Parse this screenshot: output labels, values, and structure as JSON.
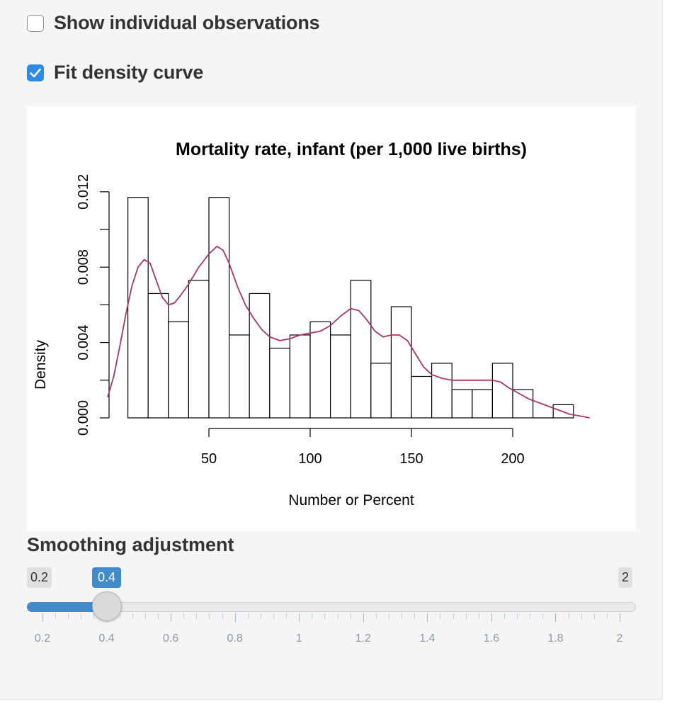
{
  "checkboxes": [
    {
      "label": "Show individual observations",
      "checked": false
    },
    {
      "label": "Fit density curve",
      "checked": true
    }
  ],
  "chart_data": {
    "type": "bar",
    "title": "Mortality rate, infant (per 1,000 live births)",
    "xlabel": "Number or Percent",
    "ylabel": "Density",
    "x_ticks": [
      50,
      100,
      150,
      200
    ],
    "y_ticks": [
      0.0,
      0.004,
      0.008,
      0.012
    ],
    "y_tick_labels": [
      "0.000",
      "0.004",
      "0.008",
      "0.012"
    ],
    "ylim": [
      0,
      0.012
    ],
    "bins": [
      {
        "x0": 10,
        "x1": 20,
        "density": 0.0117
      },
      {
        "x0": 20,
        "x1": 30,
        "density": 0.0066
      },
      {
        "x0": 30,
        "x1": 40,
        "density": 0.0051
      },
      {
        "x0": 40,
        "x1": 50,
        "density": 0.0073
      },
      {
        "x0": 50,
        "x1": 60,
        "density": 0.0117
      },
      {
        "x0": 60,
        "x1": 70,
        "density": 0.0044
      },
      {
        "x0": 70,
        "x1": 80,
        "density": 0.0066
      },
      {
        "x0": 80,
        "x1": 90,
        "density": 0.0037
      },
      {
        "x0": 90,
        "x1": 100,
        "density": 0.0044
      },
      {
        "x0": 100,
        "x1": 110,
        "density": 0.0051
      },
      {
        "x0": 110,
        "x1": 120,
        "density": 0.0044
      },
      {
        "x0": 120,
        "x1": 130,
        "density": 0.0073
      },
      {
        "x0": 130,
        "x1": 140,
        "density": 0.0029
      },
      {
        "x0": 140,
        "x1": 150,
        "density": 0.0059
      },
      {
        "x0": 150,
        "x1": 160,
        "density": 0.0022
      },
      {
        "x0": 160,
        "x1": 170,
        "density": 0.0029
      },
      {
        "x0": 170,
        "x1": 180,
        "density": 0.0015
      },
      {
        "x0": 180,
        "x1": 190,
        "density": 0.0015
      },
      {
        "x0": 190,
        "x1": 200,
        "density": 0.0029
      },
      {
        "x0": 200,
        "x1": 210,
        "density": 0.0015
      },
      {
        "x0": 210,
        "x1": 220,
        "density": 0
      },
      {
        "x0": 220,
        "x1": 230,
        "density": 0.0007
      }
    ],
    "density_curve": {
      "color": "#a8385e",
      "points": [
        [
          0,
          0.0011
        ],
        [
          3,
          0.0022
        ],
        [
          6,
          0.0038
        ],
        [
          9,
          0.0055
        ],
        [
          12,
          0.007
        ],
        [
          15,
          0.008
        ],
        [
          18,
          0.0084
        ],
        [
          21,
          0.0082
        ],
        [
          24,
          0.0073
        ],
        [
          27,
          0.0064
        ],
        [
          30,
          0.006
        ],
        [
          33,
          0.0061
        ],
        [
          36,
          0.0065
        ],
        [
          40,
          0.0071
        ],
        [
          45,
          0.008
        ],
        [
          50,
          0.0087
        ],
        [
          54,
          0.0091
        ],
        [
          57,
          0.0089
        ],
        [
          60,
          0.0082
        ],
        [
          64,
          0.007
        ],
        [
          68,
          0.006
        ],
        [
          72,
          0.0053
        ],
        [
          76,
          0.0047
        ],
        [
          80,
          0.0043
        ],
        [
          85,
          0.0041
        ],
        [
          90,
          0.0042
        ],
        [
          95,
          0.0044
        ],
        [
          100,
          0.0045
        ],
        [
          105,
          0.0046
        ],
        [
          110,
          0.0049
        ],
        [
          115,
          0.0054
        ],
        [
          120,
          0.0058
        ],
        [
          124,
          0.0057
        ],
        [
          128,
          0.0052
        ],
        [
          132,
          0.0046
        ],
        [
          136,
          0.0043
        ],
        [
          140,
          0.0044
        ],
        [
          144,
          0.0044
        ],
        [
          148,
          0.0041
        ],
        [
          152,
          0.0034
        ],
        [
          156,
          0.0027
        ],
        [
          160,
          0.0023
        ],
        [
          165,
          0.0021
        ],
        [
          170,
          0.002
        ],
        [
          175,
          0.002
        ],
        [
          180,
          0.002
        ],
        [
          185,
          0.002
        ],
        [
          190,
          0.002
        ],
        [
          194,
          0.0019
        ],
        [
          198,
          0.0016
        ],
        [
          203,
          0.0013
        ],
        [
          208,
          0.001
        ],
        [
          213,
          0.0008
        ],
        [
          218,
          0.0006
        ],
        [
          223,
          0.0004
        ],
        [
          228,
          0.0002
        ],
        [
          233,
          0.0001
        ],
        [
          238,
          0.0
        ]
      ]
    },
    "grid": false
  },
  "slider": {
    "title": "Smoothing adjustment",
    "min": 0.2,
    "max": 2,
    "value": 0.4,
    "min_label": "0.2",
    "max_label": "2",
    "value_label": "0.4",
    "tick_labels": [
      "0.2",
      "0.4",
      "0.6",
      "0.8",
      "1",
      "1.2",
      "1.4",
      "1.6",
      "1.8",
      "2"
    ],
    "tick_values": [
      0.2,
      0.4,
      0.6,
      0.8,
      1.0,
      1.2,
      1.4,
      1.6,
      1.8,
      2.0
    ],
    "accent_color": "#428bca"
  }
}
